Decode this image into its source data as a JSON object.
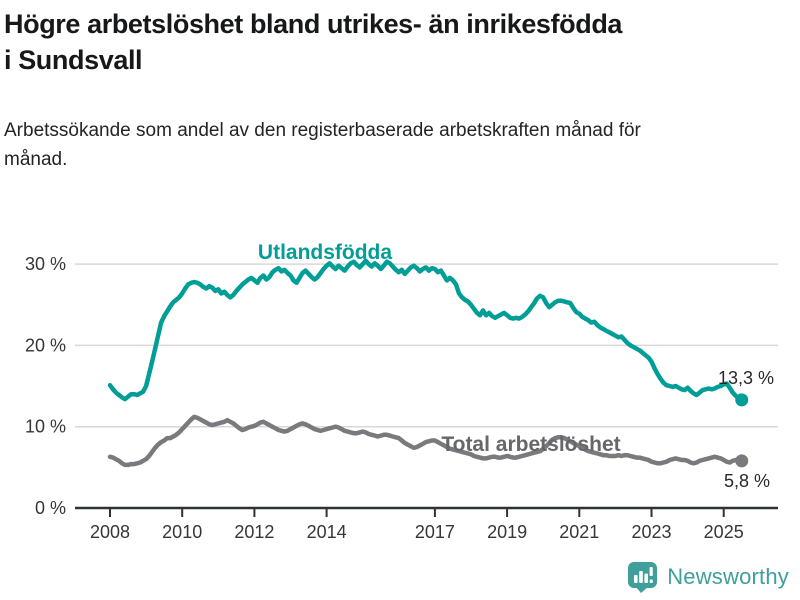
{
  "title": "Högre arbetslöshet bland utrikes- än inrikesfödda i Sundsvall",
  "subtitle": "Arbetssökande som andel av den registerbaserade arbetskraften månad för månad.",
  "footer": {
    "brand": "Newsworthy"
  },
  "colors": {
    "background": "#ffffff",
    "grid": "#d8d8d8",
    "axis": "#303335",
    "tick_text": "#343739",
    "title_text": "#16181a",
    "value_text": "#26282a",
    "brand": "#3f9f9a"
  },
  "chart_data": {
    "type": "line",
    "unit": "%",
    "frequency": "monthly",
    "x_range": [
      "2008-01",
      "2025-07"
    ],
    "ylim": [
      0,
      33
    ],
    "grid": true,
    "y_ticks": [
      {
        "value": 0,
        "label": "0 %"
      },
      {
        "value": 10,
        "label": "10 %"
      },
      {
        "value": 20,
        "label": "20 %"
      },
      {
        "value": 30,
        "label": "30 %"
      }
    ],
    "x_ticks": [
      {
        "year": 2008,
        "label": "2008"
      },
      {
        "year": 2010,
        "label": "2010"
      },
      {
        "year": 2012,
        "label": "2012"
      },
      {
        "year": 2014,
        "label": "2014"
      },
      {
        "year": 2017,
        "label": "2017"
      },
      {
        "year": 2019,
        "label": "2019"
      },
      {
        "year": 2021,
        "label": "2021"
      },
      {
        "year": 2023,
        "label": "2023"
      },
      {
        "year": 2025,
        "label": "2025"
      }
    ],
    "series": [
      {
        "name": "Total arbetslöshet",
        "color": "#7a7a7e",
        "label_color": "#66666b",
        "end_label": "5,8 %",
        "end_value": 5.8,
        "values": [
          6.3,
          6.2,
          6.0,
          5.8,
          5.5,
          5.3,
          5.3,
          5.4,
          5.4,
          5.5,
          5.6,
          5.8,
          6.0,
          6.4,
          6.9,
          7.4,
          7.8,
          8.1,
          8.3,
          8.6,
          8.6,
          8.8,
          9.0,
          9.3,
          9.7,
          10.1,
          10.5,
          10.9,
          11.2,
          11.1,
          10.9,
          10.7,
          10.5,
          10.3,
          10.2,
          10.3,
          10.4,
          10.5,
          10.6,
          10.8,
          10.6,
          10.4,
          10.1,
          9.8,
          9.6,
          9.7,
          9.9,
          10.0,
          10.1,
          10.3,
          10.5,
          10.6,
          10.4,
          10.2,
          10.0,
          9.8,
          9.6,
          9.5,
          9.4,
          9.5,
          9.7,
          9.9,
          10.1,
          10.3,
          10.4,
          10.3,
          10.1,
          9.9,
          9.7,
          9.6,
          9.5,
          9.6,
          9.7,
          9.8,
          9.9,
          10.0,
          9.9,
          9.7,
          9.5,
          9.4,
          9.3,
          9.2,
          9.2,
          9.3,
          9.4,
          9.3,
          9.1,
          9.0,
          8.9,
          8.8,
          8.9,
          9.0,
          9.0,
          8.9,
          8.8,
          8.7,
          8.6,
          8.3,
          8.0,
          7.8,
          7.6,
          7.4,
          7.5,
          7.7,
          7.9,
          8.1,
          8.2,
          8.3,
          8.3,
          8.1,
          7.9,
          7.7,
          7.5,
          7.3,
          7.2,
          7.1,
          7.0,
          6.9,
          6.8,
          6.7,
          6.6,
          6.4,
          6.3,
          6.2,
          6.1,
          6.1,
          6.2,
          6.3,
          6.3,
          6.2,
          6.2,
          6.3,
          6.4,
          6.3,
          6.2,
          6.2,
          6.3,
          6.4,
          6.5,
          6.6,
          6.7,
          6.8,
          6.9,
          7.0,
          7.3,
          7.6,
          8.0,
          8.4,
          8.6,
          8.7,
          8.7,
          8.6,
          8.4,
          8.2,
          8.0,
          7.8,
          7.6,
          7.4,
          7.2,
          7.0,
          6.9,
          6.8,
          6.7,
          6.6,
          6.5,
          6.5,
          6.4,
          6.4,
          6.4,
          6.5,
          6.4,
          6.5,
          6.5,
          6.4,
          6.3,
          6.2,
          6.2,
          6.1,
          6.0,
          5.9,
          5.7,
          5.6,
          5.5,
          5.5,
          5.6,
          5.7,
          5.9,
          6.0,
          6.1,
          6.0,
          5.9,
          5.9,
          5.8,
          5.6,
          5.5,
          5.6,
          5.8,
          5.9,
          6.0,
          6.1,
          6.2,
          6.3,
          6.2,
          6.1,
          5.9,
          5.7,
          5.6,
          5.8,
          5.9,
          5.8,
          5.8
        ]
      },
      {
        "name": "Utlandsfödda",
        "color": "#009e96",
        "label_color": "#009e96",
        "end_label": "13,3 %",
        "end_value": 13.3,
        "values": [
          15.1,
          14.6,
          14.2,
          13.9,
          13.6,
          13.4,
          13.7,
          14.0,
          14.0,
          13.9,
          14.1,
          14.3,
          15.0,
          16.5,
          18.0,
          19.6,
          21.2,
          22.8,
          23.6,
          24.2,
          24.8,
          25.3,
          25.6,
          25.9,
          26.4,
          27.0,
          27.5,
          27.7,
          27.8,
          27.7,
          27.5,
          27.2,
          27.0,
          27.3,
          27.1,
          26.7,
          26.9,
          26.4,
          26.6,
          26.2,
          25.9,
          26.2,
          26.7,
          27.1,
          27.5,
          27.8,
          28.1,
          28.3,
          28.0,
          27.7,
          28.3,
          28.6,
          28.1,
          28.4,
          29.0,
          29.3,
          29.5,
          29.1,
          29.3,
          28.9,
          28.6,
          28.0,
          27.7,
          28.3,
          28.9,
          29.2,
          28.8,
          28.4,
          28.1,
          28.4,
          28.9,
          29.4,
          29.8,
          30.1,
          29.7,
          29.4,
          29.8,
          29.5,
          29.2,
          29.7,
          30.1,
          30.3,
          29.9,
          29.6,
          30.0,
          30.4,
          30.0,
          29.7,
          30.1,
          29.8,
          29.4,
          29.8,
          30.3,
          30.1,
          29.7,
          29.3,
          29.0,
          29.3,
          28.8,
          29.2,
          29.6,
          29.8,
          29.5,
          29.1,
          29.4,
          29.6,
          29.2,
          29.5,
          29.4,
          29.0,
          29.2,
          28.6,
          28.0,
          28.3,
          28.0,
          27.5,
          26.4,
          25.9,
          25.6,
          25.4,
          25.0,
          24.5,
          24.0,
          23.7,
          24.3,
          23.7,
          24.0,
          23.6,
          23.4,
          23.6,
          23.8,
          24.0,
          23.7,
          23.4,
          23.3,
          23.4,
          23.3,
          23.5,
          23.8,
          24.2,
          24.7,
          25.2,
          25.8,
          26.1,
          25.9,
          25.2,
          24.7,
          25.0,
          25.3,
          25.5,
          25.5,
          25.4,
          25.3,
          25.2,
          24.6,
          24.1,
          23.9,
          23.5,
          23.3,
          23.1,
          22.8,
          22.9,
          22.5,
          22.2,
          22.0,
          21.8,
          21.6,
          21.4,
          21.2,
          21.0,
          21.1,
          20.7,
          20.3,
          20.0,
          19.8,
          19.6,
          19.4,
          19.1,
          18.8,
          18.5,
          18.0,
          17.2,
          16.5,
          15.9,
          15.4,
          15.1,
          15.0,
          14.9,
          15.0,
          14.8,
          14.6,
          14.5,
          14.8,
          14.4,
          14.1,
          13.9,
          14.2,
          14.5,
          14.6,
          14.7,
          14.6,
          14.7,
          14.9,
          15.0,
          15.2,
          15.3,
          14.8,
          14.2,
          13.8,
          13.5,
          13.3
        ]
      }
    ]
  }
}
